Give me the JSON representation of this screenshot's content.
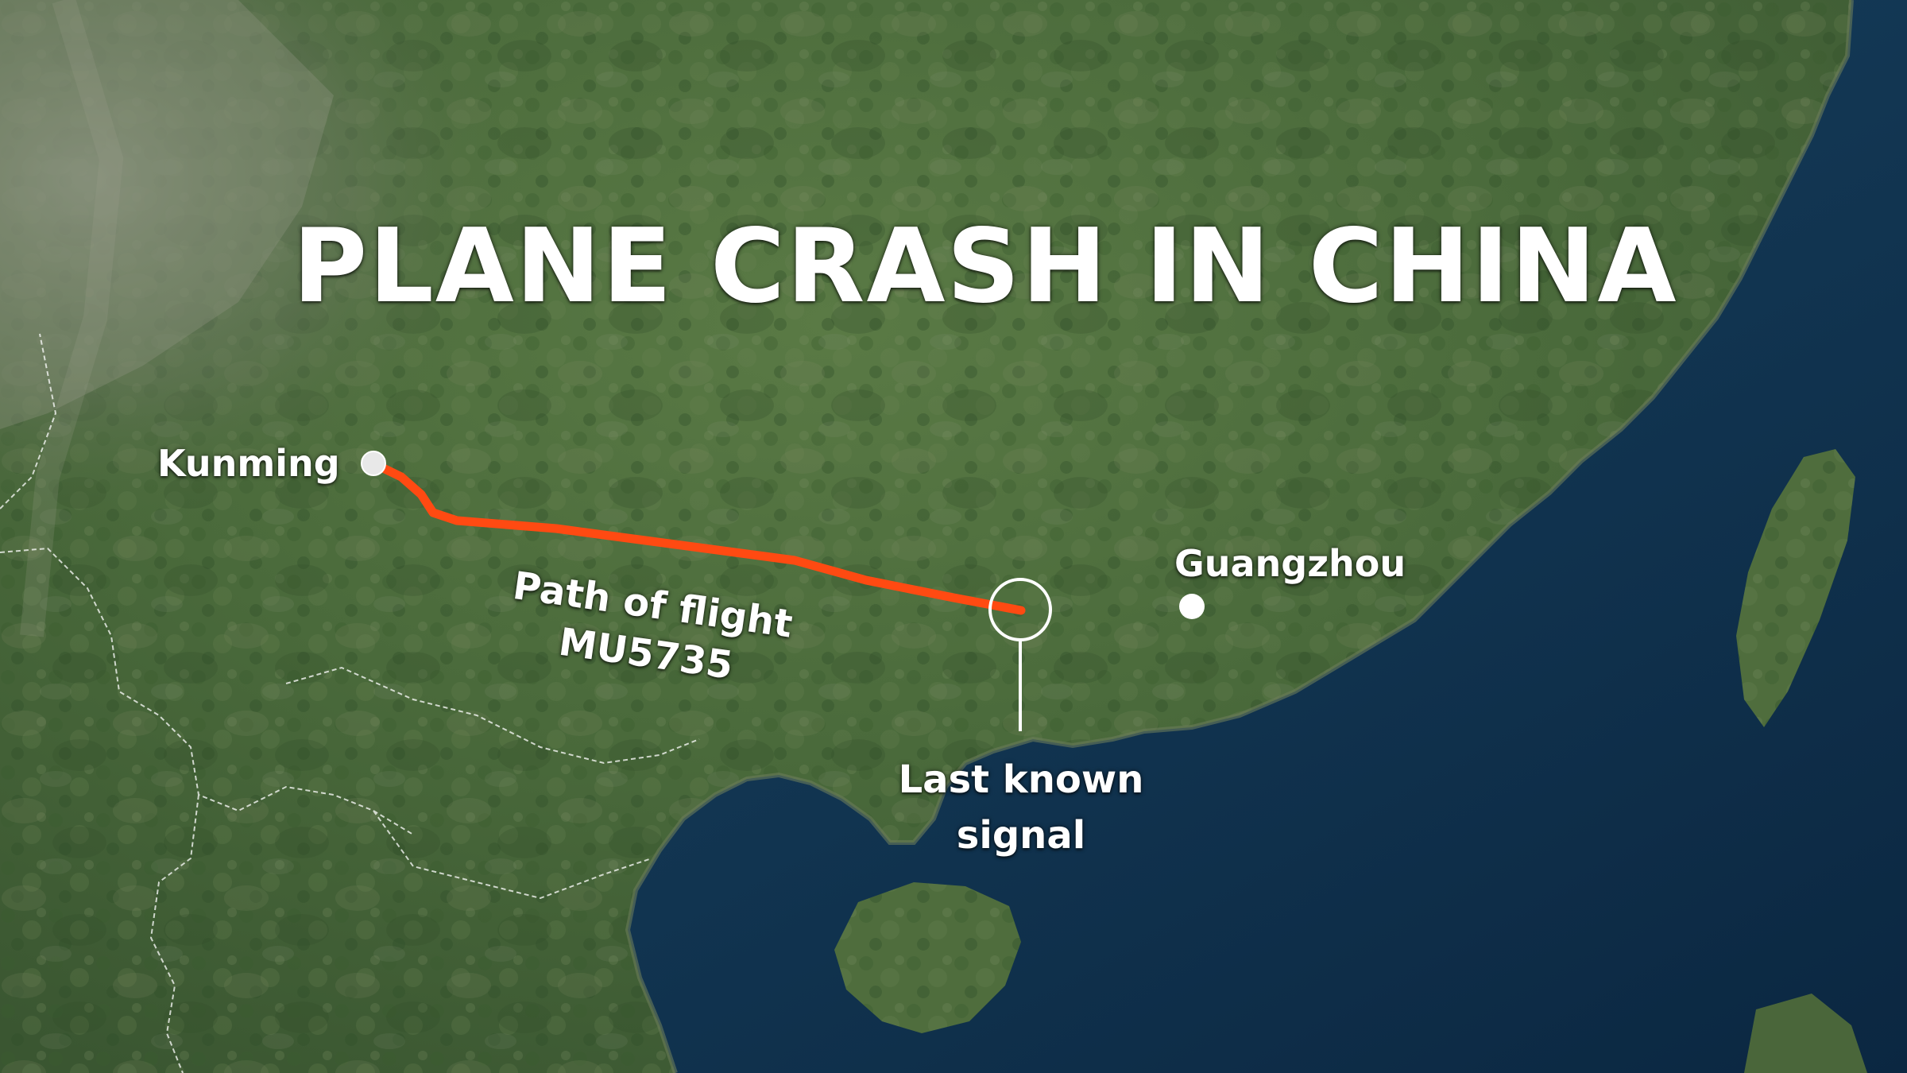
{
  "title": "PLANE CRASH IN CHINA",
  "cities": {
    "kunming": "Kunming",
    "guangzhou": "Guangzhou"
  },
  "flight_path": {
    "line1": "Path of flight",
    "line2": "MU5735"
  },
  "last_signal": {
    "line1": "Last known",
    "line2": "signal"
  },
  "colors": {
    "flight_path": "#ff4a12",
    "land": "#4c6a3c",
    "sea": "#123a5a",
    "text": "#ffffff"
  }
}
